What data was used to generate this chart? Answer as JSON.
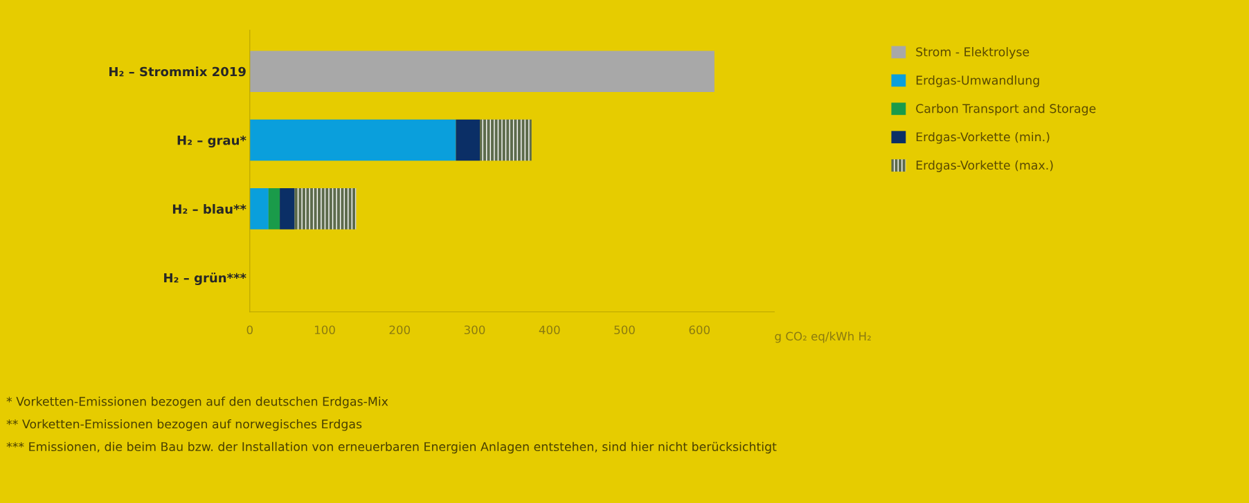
{
  "chart_data": {
    "type": "bar",
    "orientation": "horizontal",
    "stacked": true,
    "categories": [
      "H₂ – Strommix 2019",
      "H₂ – grau*",
      "H₂ – blau**",
      "H₂ – grün***"
    ],
    "series": [
      {
        "name": "Strom - Elektrolyse",
        "color": "#a8a8a8",
        "values": [
          620,
          0,
          0,
          0
        ]
      },
      {
        "name": "Erdgas-Umwandlung",
        "color": "#0a9fdc",
        "values": [
          0,
          275,
          25,
          0
        ]
      },
      {
        "name": "Carbon Transport and Storage",
        "color": "#1a9b4a",
        "values": [
          0,
          0,
          15,
          0
        ]
      },
      {
        "name": "Erdgas-Vorkette (min.)",
        "color": "#0b2f66",
        "values": [
          0,
          32,
          20,
          0
        ]
      },
      {
        "name": "Erdgas-Vorkette (max.)",
        "color": "#5d6b4c",
        "values": [
          0,
          69,
          82,
          0
        ]
      }
    ],
    "xlim": [
      0,
      700
    ],
    "xticks": [
      0,
      100,
      200,
      300,
      400,
      500,
      600
    ],
    "xlabel": "g CO₂ eq/kWh H₂",
    "legend": "top right",
    "grid": false,
    "annotations": [
      "* Vorketten-Emissionen bezogen auf den deutschen Erdgas-Mix",
      "** Vorketten-Emissionen bezogen auf norwegisches Erdgas",
      "*** Emissionen, die beim Bau bzw. der Installation von erneuerbaren Energien Anlagen entstehen, sind hier nicht berücksichtigt"
    ]
  }
}
